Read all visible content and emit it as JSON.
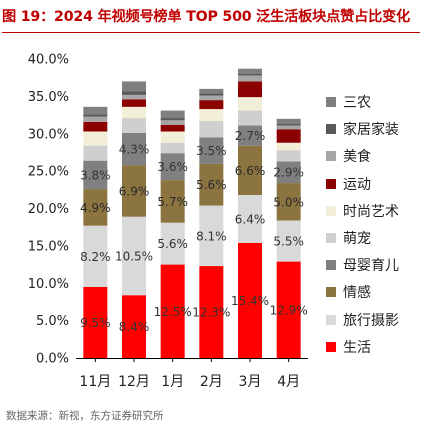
{
  "header": {
    "title": "图 19：2024 年视频号榜单 TOP 500 泛生活板块点赞占比变化"
  },
  "footer": {
    "source": "数据来源：新视，东方证券研究所"
  },
  "chart_data": {
    "type": "bar",
    "stacked": true,
    "categories": [
      "11月",
      "12月",
      "1月",
      "2月",
      "3月",
      "4月"
    ],
    "ylim": [
      0,
      40
    ],
    "yticks": [
      0,
      5,
      10,
      15,
      20,
      25,
      30,
      35,
      40
    ],
    "ytick_format": "percent_1dp",
    "legend_position": "right",
    "grid": false,
    "series": [
      {
        "name": "生活",
        "color": "#ff0000",
        "values": [
          9.5,
          8.4,
          12.5,
          12.3,
          15.4,
          12.9
        ],
        "labels": [
          "9.5%",
          "8.4%",
          "12.5%",
          "12.3%",
          "15.4%",
          "12.9%"
        ]
      },
      {
        "name": "旅行摄影",
        "color": "#d9d9d9",
        "values": [
          8.2,
          10.5,
          5.6,
          8.1,
          6.4,
          5.5
        ],
        "labels": [
          "8.2%",
          "10.5%",
          "5.6%",
          "8.1%",
          "6.4%",
          "5.5%"
        ]
      },
      {
        "name": "情感",
        "color": "#8b7440",
        "values": [
          4.9,
          6.9,
          5.7,
          5.6,
          6.6,
          5.0
        ],
        "labels": [
          "4.9%",
          "6.9%",
          "5.7%",
          "5.6%",
          "6.6%",
          "5.0%"
        ]
      },
      {
        "name": "母婴育儿",
        "color": "#808080",
        "values": [
          3.8,
          4.3,
          3.6,
          3.5,
          2.7,
          2.9
        ],
        "labels": [
          "3.8%",
          "4.3%",
          "3.6%",
          "3.5%",
          "2.7%",
          "2.9%"
        ]
      },
      {
        "name": "萌宠",
        "color": "#cfcfcf",
        "values": [
          2.0,
          2.0,
          1.4,
          2.2,
          2.0,
          1.5
        ],
        "labels": []
      },
      {
        "name": "时尚艺术",
        "color": "#f2eed8",
        "values": [
          1.9,
          1.5,
          1.5,
          1.6,
          1.8,
          1.0
        ],
        "labels": []
      },
      {
        "name": "运动",
        "color": "#8b0000",
        "values": [
          1.3,
          1.0,
          0.9,
          1.2,
          2.1,
          1.8
        ],
        "labels": []
      },
      {
        "name": "美食",
        "color": "#a6a6a6",
        "values": [
          0.7,
          0.6,
          0.6,
          0.6,
          0.8,
          0.5
        ],
        "labels": []
      },
      {
        "name": "家居家装",
        "color": "#595959",
        "values": [
          0.3,
          0.5,
          0.3,
          0.3,
          0.2,
          0.2
        ],
        "labels": []
      },
      {
        "name": "三农",
        "color": "#7f7f7f",
        "values": [
          1.0,
          1.3,
          1.0,
          0.6,
          0.7,
          0.7
        ],
        "labels": []
      }
    ]
  }
}
